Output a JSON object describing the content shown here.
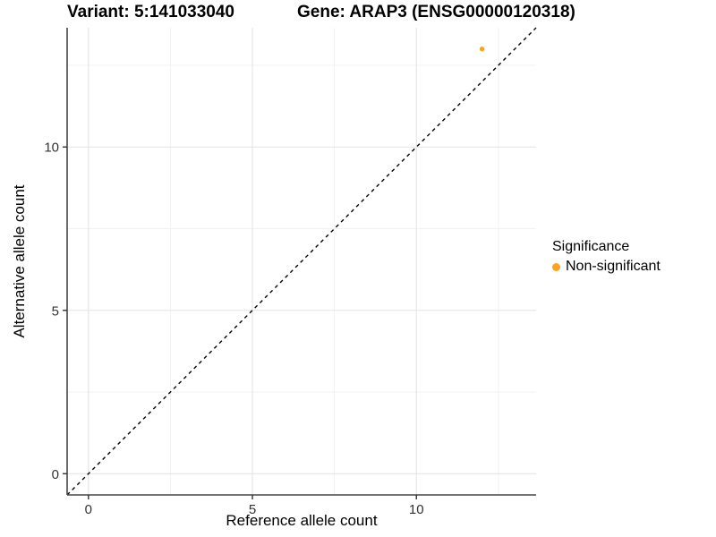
{
  "header": {
    "variant_title": "Variant: 5:141033040",
    "gene_title": "Gene: ARAP3 (ENSG00000120318)"
  },
  "chart_data": {
    "type": "scatter",
    "title_left": "Variant: 5:141033040",
    "title_right": "Gene: ARAP3 (ENSG00000120318)",
    "xlabel": "Reference allele count",
    "ylabel": "Alternative allele count",
    "xlim": [
      -0.65,
      13.65
    ],
    "ylim": [
      -0.65,
      13.65
    ],
    "x_ticks": [
      0,
      5,
      10
    ],
    "y_ticks": [
      0,
      5,
      10
    ],
    "x_minor_ticks": [
      2.5,
      7.5,
      12.5
    ],
    "y_minor_ticks": [
      2.5,
      7.5,
      12.5
    ],
    "grid": true,
    "identity_line": {
      "style": "dashed",
      "slope": 1,
      "intercept": 0,
      "from": [
        -0.65,
        -0.65
      ],
      "to": [
        13.65,
        13.65
      ],
      "color": "#000000"
    },
    "series": [
      {
        "name": "Non-significant",
        "color": "#FFA21E",
        "points": [
          [
            12,
            13
          ]
        ],
        "point_radius": 2.7
      }
    ],
    "legend": {
      "title": "Significance",
      "position": "right",
      "entries": [
        {
          "label": "Non-significant",
          "color": "#FFA21E"
        }
      ]
    },
    "colors": {
      "grid_major": "#e4e4e4",
      "grid_minor": "#f1f1f1",
      "axis_line": "#464646",
      "tick_mark": "#333333",
      "tick_label": "#333333",
      "panel_background": "#ffffff"
    }
  }
}
